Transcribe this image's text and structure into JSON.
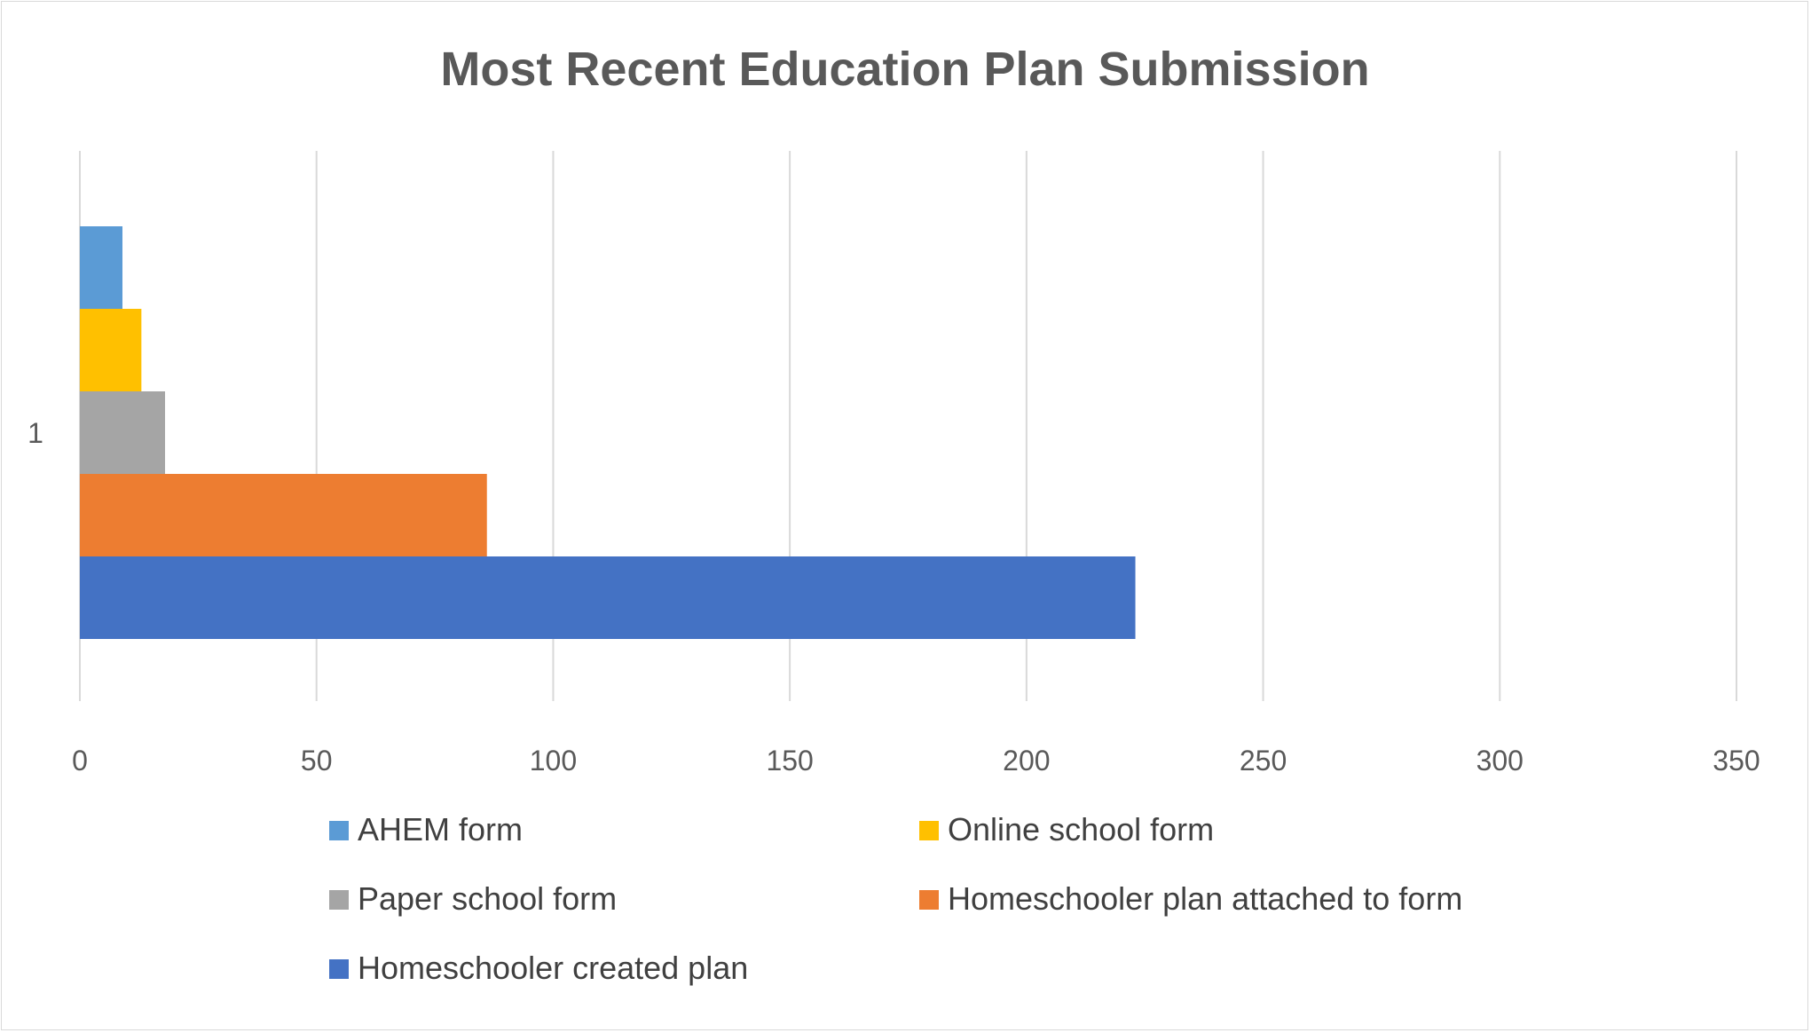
{
  "chart_data": {
    "type": "bar",
    "orientation": "horizontal",
    "title": "Most Recent Education Plan Submission",
    "xlabel": "",
    "ylabel": "",
    "categories": [
      "1"
    ],
    "xlim": [
      0,
      350
    ],
    "x_ticks": [
      0,
      50,
      100,
      150,
      200,
      250,
      300,
      350
    ],
    "grid": true,
    "legend_position": "bottom",
    "series": [
      {
        "name": "AHEM form",
        "values": [
          9
        ],
        "color": "#5B9BD5"
      },
      {
        "name": "Online school form",
        "values": [
          13
        ],
        "color": "#FFC000"
      },
      {
        "name": "Paper school form",
        "values": [
          18
        ],
        "color": "#A5A5A5"
      },
      {
        "name": "Homeschooler plan attached to form",
        "values": [
          86
        ],
        "color": "#ED7D31"
      },
      {
        "name": "Homeschooler created plan",
        "values": [
          223
        ],
        "color": "#4472C4"
      }
    ]
  }
}
